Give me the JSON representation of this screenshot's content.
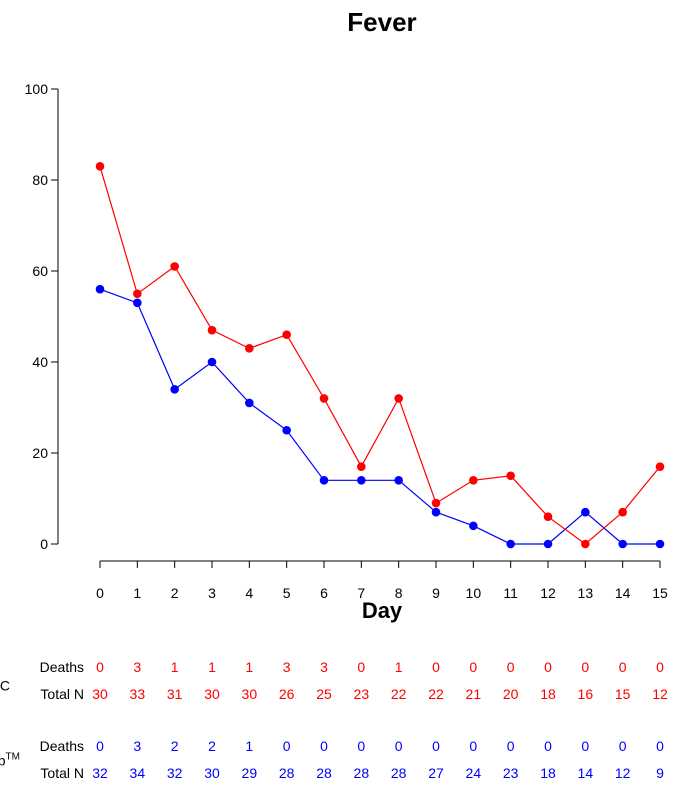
{
  "chart_data": {
    "type": "line",
    "title": "Fever",
    "xlabel": "Day",
    "ylabel": "",
    "x": [
      0,
      1,
      2,
      3,
      4,
      5,
      6,
      7,
      8,
      9,
      10,
      11,
      12,
      13,
      14,
      15
    ],
    "ylim": [
      0,
      100
    ],
    "yticks": [
      0,
      20,
      40,
      60,
      80,
      100
    ],
    "grid": false,
    "series": [
      {
        "name": "red",
        "color": "#ff0000",
        "values": [
          83,
          55,
          61,
          47,
          43,
          46,
          32,
          17,
          32,
          9,
          14,
          15,
          6,
          0,
          7,
          17
        ]
      },
      {
        "name": "blue",
        "color": "#0000ff",
        "values": [
          56,
          53,
          34,
          40,
          31,
          25,
          14,
          14,
          14,
          7,
          4,
          0,
          0,
          7,
          0,
          0
        ]
      }
    ]
  },
  "risk_table": {
    "groups": [
      {
        "label_fragment": "C",
        "color": "#ff0000",
        "rows": [
          {
            "label": "Deaths",
            "values": [
              0,
              3,
              1,
              1,
              1,
              3,
              3,
              0,
              1,
              0,
              0,
              0,
              0,
              0,
              0,
              0
            ]
          },
          {
            "label": "Total N",
            "values": [
              30,
              33,
              31,
              30,
              30,
              26,
              25,
              23,
              22,
              22,
              21,
              20,
              18,
              16,
              15,
              12
            ]
          }
        ]
      },
      {
        "label_fragment": "p",
        "label_superscript": "TM",
        "color": "#0000ff",
        "rows": [
          {
            "label": "Deaths",
            "values": [
              0,
              3,
              2,
              2,
              1,
              0,
              0,
              0,
              0,
              0,
              0,
              0,
              0,
              0,
              0,
              0
            ]
          },
          {
            "label": "Total N",
            "values": [
              32,
              34,
              32,
              30,
              29,
              28,
              28,
              28,
              28,
              27,
              24,
              23,
              18,
              14,
              12,
              9
            ]
          }
        ]
      }
    ]
  }
}
